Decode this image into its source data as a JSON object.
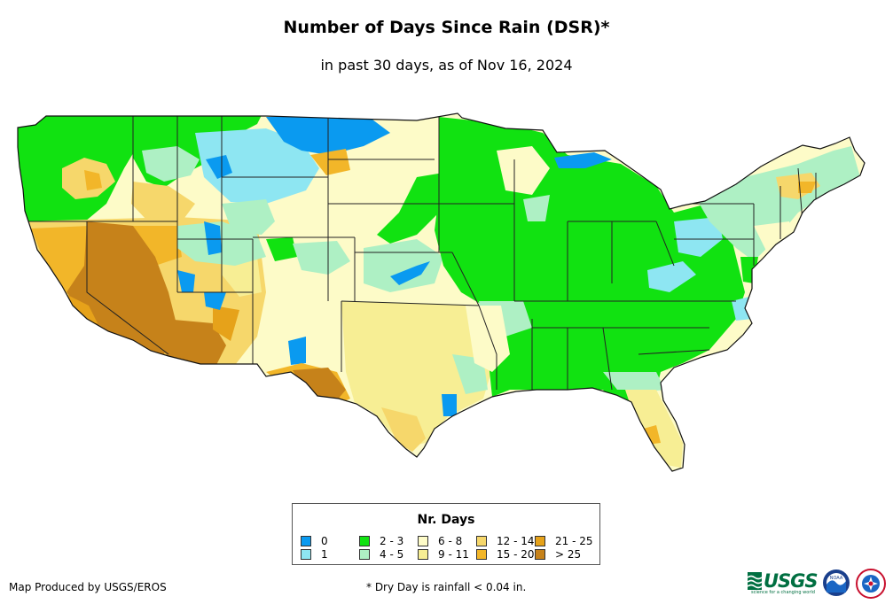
{
  "header": {
    "title": "Number of Days Since Rain (DSR)*",
    "subtitle": "in past 30 days, as of Nov 16, 2024"
  },
  "map": {
    "region": "contiguous-united-states",
    "dominant_classes": {
      "pacific_northwest": "2 - 3",
      "california_southwest_desert": "> 25",
      "great_basin": "12 - 14",
      "northern_rockies": "1",
      "northern_plains": "6 - 8",
      "midwest": "2 - 3",
      "southeast": "2 - 3",
      "texas": "9 - 11",
      "florida_peninsula": "9 - 11",
      "northeast": "4 - 5",
      "new_england": "4 - 5"
    }
  },
  "legend": {
    "title": "Nr. Days",
    "items": [
      {
        "label": "0",
        "color": "#0a9af0"
      },
      {
        "label": "1",
        "color": "#8ee6f2"
      },
      {
        "label": "2 - 3",
        "color": "#11e211"
      },
      {
        "label": "4 - 5",
        "color": "#aef0c4"
      },
      {
        "label": "6 - 8",
        "color": "#fdfbc8"
      },
      {
        "label": "9 - 11",
        "color": "#f7ee94"
      },
      {
        "label": "12 - 14",
        "color": "#f6d76b"
      },
      {
        "label": "15 - 20",
        "color": "#f2b629"
      },
      {
        "label": "21 - 25",
        "color": "#e6a21a"
      },
      {
        "label": "> 25",
        "color": "#c6821a"
      }
    ]
  },
  "footer": {
    "credit": "Map Produced by USGS/EROS",
    "footnote": "* Dry Day is rainfall < 0.04 in.",
    "usgs_logo_text": "USGS",
    "usgs_tagline": "science for a changing world",
    "noaa_logo_text": "NOAA"
  }
}
